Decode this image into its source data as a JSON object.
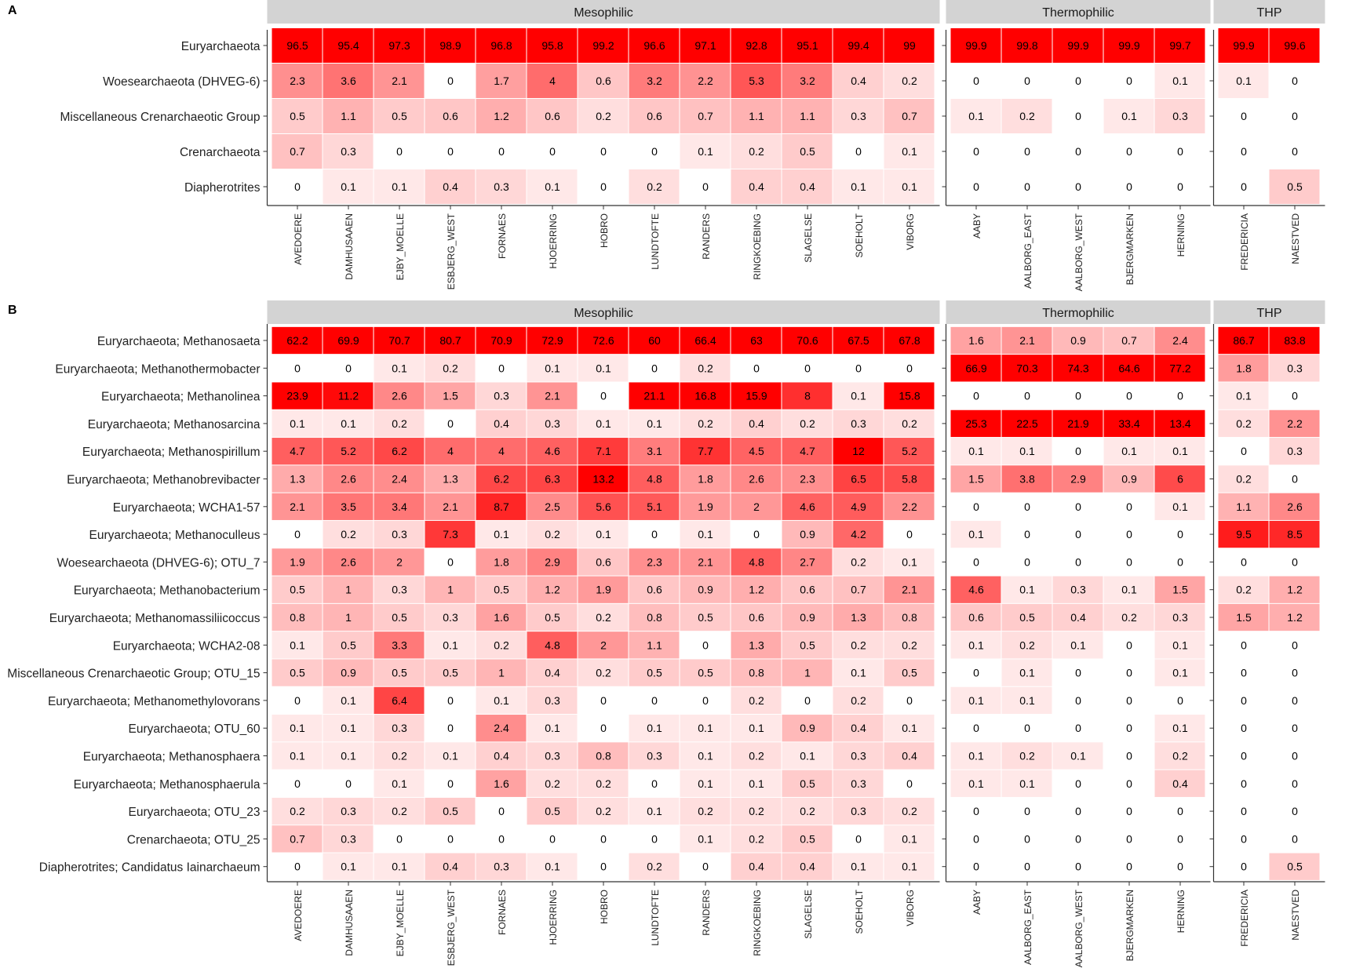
{
  "chart_data": [
    {
      "type": "heatmap",
      "panel_label": "A",
      "groups": [
        {
          "name": "Mesophilic",
          "samples": [
            "AVEDOERE",
            "DAMHUSAAEN",
            "EJBY_MOELLE",
            "ESBJERG_WEST",
            "FORNAES",
            "HJOERRING",
            "HOBRO",
            "LUNDTOFTE",
            "RANDERS",
            "RINGKOEBING",
            "SLAGELSE",
            "SOEHOLT",
            "VIBORG"
          ]
        },
        {
          "name": "Thermophilic",
          "samples": [
            "AABY",
            "AALBORG_EAST",
            "AALBORG_WEST",
            "BJERGMARKEN",
            "HERNING"
          ]
        },
        {
          "name": "THP",
          "samples": [
            "FREDERICIA",
            "NAESTVED"
          ]
        }
      ],
      "rows": [
        {
          "name": "Euryarchaeota",
          "values": [
            [
              96.5,
              95.4,
              97.3,
              98.9,
              96.8,
              95.8,
              99.2,
              96.6,
              97.1,
              92.8,
              95.1,
              99.4,
              99
            ],
            [
              99.9,
              99.8,
              99.9,
              99.9,
              99.7
            ],
            [
              99.9,
              99.6
            ]
          ]
        },
        {
          "name": "Woesearchaeota (DHVEG-6)",
          "values": [
            [
              2.3,
              3.6,
              2.1,
              0,
              1.7,
              4,
              0.6,
              3.2,
              2.2,
              5.3,
              3.2,
              0.4,
              0.2
            ],
            [
              0,
              0,
              0,
              0,
              0.1
            ],
            [
              0.1,
              0
            ]
          ]
        },
        {
          "name": "Miscellaneous Crenarchaeotic Group",
          "values": [
            [
              0.5,
              1.1,
              0.5,
              0.6,
              1.2,
              0.6,
              0.2,
              0.6,
              0.7,
              1.1,
              1.1,
              0.3,
              0.7
            ],
            [
              0.1,
              0.2,
              0,
              0.1,
              0.3
            ],
            [
              0,
              0
            ]
          ]
        },
        {
          "name": "Crenarchaeota",
          "values": [
            [
              0.7,
              0.3,
              0,
              0,
              0,
              0,
              0,
              0,
              0.1,
              0.2,
              0.5,
              0,
              0.1
            ],
            [
              0,
              0,
              0,
              0,
              0
            ],
            [
              0,
              0
            ]
          ]
        },
        {
          "name": "Diapherotrites",
          "values": [
            [
              0,
              0.1,
              0.1,
              0.4,
              0.3,
              0.1,
              0,
              0.2,
              0,
              0.4,
              0.4,
              0.1,
              0.1
            ],
            [
              0,
              0,
              0,
              0,
              0
            ],
            [
              0,
              0.5
            ]
          ]
        }
      ]
    },
    {
      "type": "heatmap",
      "panel_label": "B",
      "groups": [
        {
          "name": "Mesophilic",
          "samples": [
            "AVEDOERE",
            "DAMHUSAAEN",
            "EJBY_MOELLE",
            "ESBJERG_WEST",
            "FORNAES",
            "HJOERRING",
            "HOBRO",
            "LUNDTOFTE",
            "RANDERS",
            "RINGKOEBING",
            "SLAGELSE",
            "SOEHOLT",
            "VIBORG"
          ]
        },
        {
          "name": "Thermophilic",
          "samples": [
            "AABY",
            "AALBORG_EAST",
            "AALBORG_WEST",
            "BJERGMARKEN",
            "HERNING"
          ]
        },
        {
          "name": "THP",
          "samples": [
            "FREDERICIA",
            "NAESTVED"
          ]
        }
      ],
      "rows": [
        {
          "name": "Euryarchaeota; Methanosaeta",
          "values": [
            [
              62.2,
              69.9,
              70.7,
              80.7,
              70.9,
              72.9,
              72.6,
              60,
              66.4,
              63,
              70.6,
              67.5,
              67.8
            ],
            [
              1.6,
              2.1,
              0.9,
              0.7,
              2.4
            ],
            [
              86.7,
              83.8
            ]
          ]
        },
        {
          "name": "Euryarchaeota; Methanothermobacter",
          "values": [
            [
              0,
              0,
              0.1,
              0.2,
              0,
              0.1,
              0.1,
              0,
              0.2,
              0,
              0,
              0,
              0
            ],
            [
              66.9,
              70.3,
              74.3,
              64.6,
              77.2
            ],
            [
              1.8,
              0.3
            ]
          ]
        },
        {
          "name": "Euryarchaeota; Methanolinea",
          "values": [
            [
              23.9,
              11.2,
              2.6,
              1.5,
              0.3,
              2.1,
              0,
              21.1,
              16.8,
              15.9,
              8,
              0.1,
              15.8
            ],
            [
              0,
              0,
              0,
              0,
              0
            ],
            [
              0.1,
              0
            ]
          ]
        },
        {
          "name": "Euryarchaeota; Methanosarcina",
          "values": [
            [
              0.1,
              0.1,
              0.2,
              0,
              0.4,
              0.3,
              0.1,
              0.1,
              0.2,
              0.4,
              0.2,
              0.3,
              0.2
            ],
            [
              25.3,
              22.5,
              21.9,
              33.4,
              13.4
            ],
            [
              0.2,
              2.2
            ]
          ]
        },
        {
          "name": "Euryarchaeota; Methanospirillum",
          "values": [
            [
              4.7,
              5.2,
              6.2,
              4,
              4,
              4.6,
              7.1,
              3.1,
              7.7,
              4.5,
              4.7,
              12,
              5.2
            ],
            [
              0.1,
              0.1,
              0,
              0.1,
              0.1
            ],
            [
              0,
              0.3
            ]
          ]
        },
        {
          "name": "Euryarchaeota; Methanobrevibacter",
          "values": [
            [
              1.3,
              2.6,
              2.4,
              1.3,
              6.2,
              6.3,
              13.2,
              4.8,
              1.8,
              2.6,
              2.3,
              6.5,
              5.8
            ],
            [
              1.5,
              3.8,
              2.9,
              0.9,
              6
            ],
            [
              0.2,
              0
            ]
          ]
        },
        {
          "name": "Euryarchaeota; WCHA1-57",
          "values": [
            [
              2.1,
              3.5,
              3.4,
              2.1,
              8.7,
              2.5,
              5.6,
              5.1,
              1.9,
              2,
              4.6,
              4.9,
              2.2
            ],
            [
              0,
              0,
              0,
              0,
              0.1
            ],
            [
              1.1,
              2.6
            ]
          ]
        },
        {
          "name": "Euryarchaeota; Methanoculleus",
          "values": [
            [
              0,
              0.2,
              0.3,
              7.3,
              0.1,
              0.2,
              0.1,
              0,
              0.1,
              0,
              0.9,
              4.2,
              0
            ],
            [
              0.1,
              0,
              0,
              0,
              0
            ],
            [
              9.5,
              8.5
            ]
          ]
        },
        {
          "name": "Woesearchaeota (DHVEG-6); OTU_7",
          "values": [
            [
              1.9,
              2.6,
              2,
              0,
              1.8,
              2.9,
              0.6,
              2.3,
              2.1,
              4.8,
              2.7,
              0.2,
              0.1
            ],
            [
              0,
              0,
              0,
              0,
              0
            ],
            [
              0,
              0
            ]
          ]
        },
        {
          "name": "Euryarchaeota; Methanobacterium",
          "values": [
            [
              0.5,
              1,
              0.3,
              1,
              0.5,
              1.2,
              1.9,
              0.6,
              0.9,
              1.2,
              0.6,
              0.7,
              2.1
            ],
            [
              4.6,
              0.1,
              0.3,
              0.1,
              1.5
            ],
            [
              0.2,
              1.2
            ]
          ]
        },
        {
          "name": "Euryarchaeota; Methanomassiliicoccus",
          "values": [
            [
              0.8,
              1,
              0.5,
              0.3,
              1.6,
              0.5,
              0.2,
              0.8,
              0.5,
              0.6,
              0.9,
              1.3,
              0.8
            ],
            [
              0.6,
              0.5,
              0.4,
              0.2,
              0.3
            ],
            [
              1.5,
              1.2
            ]
          ]
        },
        {
          "name": "Euryarchaeota; WCHA2-08",
          "values": [
            [
              0.1,
              0.5,
              3.3,
              0.1,
              0.2,
              4.8,
              2,
              1.1,
              0,
              1.3,
              0.5,
              0.2,
              0.2
            ],
            [
              0.1,
              0.2,
              0.1,
              0,
              0.1
            ],
            [
              0,
              0
            ]
          ]
        },
        {
          "name": "Miscellaneous Crenarchaeotic Group; OTU_15",
          "values": [
            [
              0.5,
              0.9,
              0.5,
              0.5,
              1,
              0.4,
              0.2,
              0.5,
              0.5,
              0.8,
              1,
              0.1,
              0.5
            ],
            [
              0,
              0.1,
              0,
              0,
              0.1
            ],
            [
              0,
              0
            ]
          ]
        },
        {
          "name": "Euryarchaeota; Methanomethylovorans",
          "values": [
            [
              0,
              0.1,
              6.4,
              0,
              0.1,
              0.3,
              0,
              0,
              0,
              0.2,
              0,
              0.2,
              0
            ],
            [
              0.1,
              0.1,
              0,
              0,
              0
            ],
            [
              0,
              0
            ]
          ]
        },
        {
          "name": "Euryarchaeota; OTU_60",
          "values": [
            [
              0.1,
              0.1,
              0.3,
              0,
              2.4,
              0.1,
              0,
              0.1,
              0.1,
              0.1,
              0.9,
              0.4,
              0.1
            ],
            [
              0,
              0,
              0,
              0,
              0.1
            ],
            [
              0,
              0
            ]
          ]
        },
        {
          "name": "Euryarchaeota; Methanosphaera",
          "values": [
            [
              0.1,
              0.1,
              0.2,
              0.1,
              0.4,
              0.3,
              0.8,
              0.3,
              0.1,
              0.2,
              0.1,
              0.3,
              0.4
            ],
            [
              0.1,
              0.2,
              0.1,
              0,
              0.2
            ],
            [
              0,
              0
            ]
          ]
        },
        {
          "name": "Euryarchaeota; Methanosphaerula",
          "values": [
            [
              0,
              0,
              0.1,
              0,
              1.6,
              0.2,
              0.2,
              0,
              0.1,
              0.1,
              0.5,
              0.3,
              0
            ],
            [
              0.1,
              0.1,
              0,
              0,
              0.4
            ],
            [
              0,
              0
            ]
          ]
        },
        {
          "name": "Euryarchaeota; OTU_23",
          "values": [
            [
              0.2,
              0.3,
              0.2,
              0.5,
              0,
              0.5,
              0.2,
              0.1,
              0.2,
              0.2,
              0.2,
              0.3,
              0.2
            ],
            [
              0,
              0,
              0,
              0,
              0
            ],
            [
              0,
              0
            ]
          ]
        },
        {
          "name": "Crenarchaeota; OTU_25",
          "values": [
            [
              0.7,
              0.3,
              0,
              0,
              0,
              0,
              0,
              0,
              0.1,
              0.2,
              0.5,
              0,
              0.1
            ],
            [
              0,
              0,
              0,
              0,
              0
            ],
            [
              0,
              0
            ]
          ]
        },
        {
          "name": "Diapherotrites; Candidatus Iainarchaeum",
          "values": [
            [
              0,
              0.1,
              0.1,
              0.4,
              0.3,
              0.1,
              0,
              0.2,
              0,
              0.4,
              0.4,
              0.1,
              0.1
            ],
            [
              0,
              0,
              0,
              0,
              0
            ],
            [
              0,
              0.5
            ]
          ]
        }
      ]
    }
  ]
}
